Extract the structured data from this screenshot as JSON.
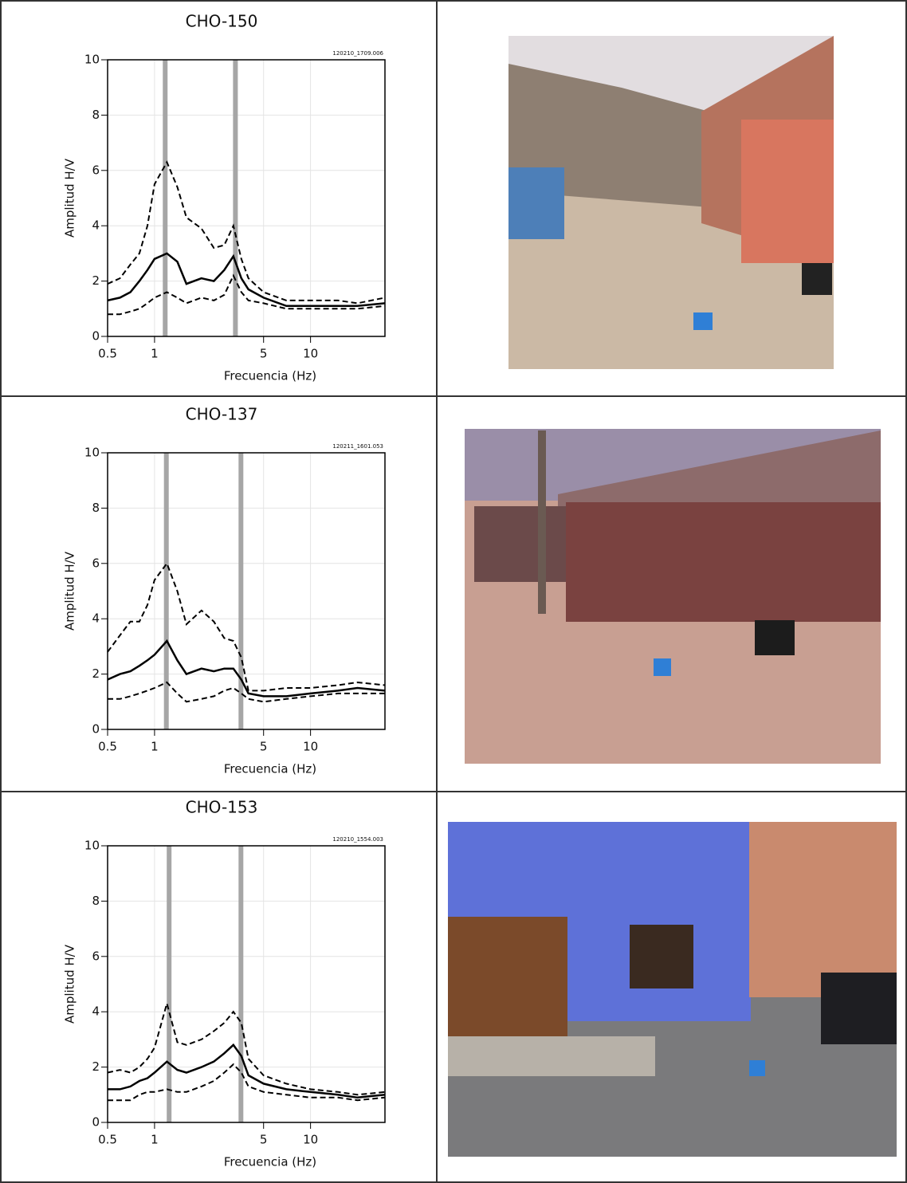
{
  "chart_data": [
    {
      "type": "line",
      "title": "CHO-150",
      "annotation": "120210_1709.006",
      "xlabel": "Frecuencia (Hz)",
      "ylabel": "Amplitud H/V",
      "xscale": "log",
      "xlim": [
        0.5,
        30
      ],
      "xticks": [
        0.5,
        1,
        5,
        10
      ],
      "ylim": [
        0,
        10
      ],
      "yticks": [
        0,
        2,
        4,
        6,
        8,
        10
      ],
      "grid": true,
      "peaks": [
        1.17,
        3.3
      ],
      "peak_color": "#a6a6a6",
      "x": [
        0.5,
        0.6,
        0.7,
        0.8,
        0.9,
        1.0,
        1.2,
        1.4,
        1.6,
        2.0,
        2.4,
        2.8,
        3.2,
        3.6,
        4,
        5,
        7,
        10,
        15,
        20,
        30
      ],
      "series": [
        {
          "color": "#000000",
          "dashed": false,
          "values": [
            1.3,
            1.4,
            1.6,
            2.0,
            2.4,
            2.8,
            3.0,
            2.7,
            1.9,
            2.1,
            2.0,
            2.4,
            2.9,
            2.1,
            1.7,
            1.4,
            1.1,
            1.1,
            1.1,
            1.1,
            1.2
          ]
        },
        {
          "color": "#000000",
          "dashed": true,
          "values": [
            1.9,
            2.1,
            2.6,
            3.0,
            4.0,
            5.5,
            6.3,
            5.4,
            4.3,
            3.9,
            3.2,
            3.3,
            4.0,
            2.8,
            2.1,
            1.6,
            1.3,
            1.3,
            1.3,
            1.2,
            1.4
          ]
        },
        {
          "color": "#000000",
          "dashed": true,
          "values": [
            0.8,
            0.8,
            0.9,
            1.0,
            1.2,
            1.4,
            1.6,
            1.4,
            1.2,
            1.4,
            1.3,
            1.5,
            2.2,
            1.6,
            1.3,
            1.2,
            1.0,
            1.0,
            1.0,
            1.0,
            1.1
          ]
        }
      ]
    },
    {
      "type": "line",
      "title": "CHO-137",
      "annotation": "120211_1601.053",
      "xlabel": "Frecuencia (Hz)",
      "ylabel": "Amplitud H/V",
      "xscale": "log",
      "xlim": [
        0.5,
        30
      ],
      "xticks": [
        0.5,
        1,
        5,
        10
      ],
      "ylim": [
        0,
        10
      ],
      "yticks": [
        0,
        2,
        4,
        6,
        8,
        10
      ],
      "grid": true,
      "peaks": [
        1.19,
        3.58
      ],
      "peak_color": "#a6a6a6",
      "x": [
        0.5,
        0.6,
        0.7,
        0.8,
        0.9,
        1.0,
        1.2,
        1.4,
        1.6,
        2.0,
        2.4,
        2.8,
        3.2,
        3.6,
        4,
        5,
        7,
        10,
        15,
        20,
        30
      ],
      "series": [
        {
          "color": "#000000",
          "dashed": false,
          "values": [
            1.8,
            2.0,
            2.1,
            2.3,
            2.5,
            2.7,
            3.2,
            2.5,
            2.0,
            2.2,
            2.1,
            2.2,
            2.2,
            1.8,
            1.3,
            1.2,
            1.2,
            1.3,
            1.4,
            1.5,
            1.4
          ]
        },
        {
          "color": "#000000",
          "dashed": true,
          "values": [
            2.8,
            3.4,
            3.9,
            3.9,
            4.5,
            5.4,
            6.0,
            5.0,
            3.8,
            4.3,
            3.9,
            3.3,
            3.2,
            2.6,
            1.4,
            1.4,
            1.5,
            1.5,
            1.6,
            1.7,
            1.6
          ]
        },
        {
          "color": "#000000",
          "dashed": true,
          "values": [
            1.1,
            1.1,
            1.2,
            1.3,
            1.4,
            1.5,
            1.7,
            1.3,
            1.0,
            1.1,
            1.2,
            1.4,
            1.5,
            1.3,
            1.1,
            1.0,
            1.1,
            1.2,
            1.3,
            1.3,
            1.3
          ]
        }
      ]
    },
    {
      "type": "line",
      "title": "CHO-153",
      "annotation": "120210_1554.003",
      "xlabel": "Frecuencia (Hz)",
      "ylabel": "Amplitud H/V",
      "xscale": "log",
      "xlim": [
        0.5,
        30
      ],
      "xticks": [
        0.5,
        1,
        5,
        10
      ],
      "ylim": [
        0,
        10
      ],
      "yticks": [
        0,
        2,
        4,
        6,
        8,
        10
      ],
      "grid": true,
      "peaks": [
        1.24,
        3.58
      ],
      "peak_color": "#a6a6a6",
      "x": [
        0.5,
        0.6,
        0.7,
        0.8,
        0.9,
        1.0,
        1.2,
        1.4,
        1.6,
        2.0,
        2.4,
        2.8,
        3.2,
        3.6,
        4,
        5,
        7,
        10,
        15,
        20,
        30
      ],
      "series": [
        {
          "color": "#000000",
          "dashed": false,
          "values": [
            1.2,
            1.2,
            1.3,
            1.5,
            1.6,
            1.8,
            2.2,
            1.9,
            1.8,
            2.0,
            2.2,
            2.5,
            2.8,
            2.4,
            1.7,
            1.4,
            1.2,
            1.1,
            1.0,
            0.9,
            1.0
          ]
        },
        {
          "color": "#000000",
          "dashed": true,
          "values": [
            1.8,
            1.9,
            1.8,
            2.0,
            2.3,
            2.7,
            4.3,
            2.9,
            2.8,
            3.0,
            3.3,
            3.6,
            4.0,
            3.6,
            2.3,
            1.7,
            1.4,
            1.2,
            1.1,
            1.0,
            1.1
          ]
        },
        {
          "color": "#000000",
          "dashed": true,
          "values": [
            0.8,
            0.8,
            0.8,
            1.0,
            1.1,
            1.1,
            1.2,
            1.1,
            1.1,
            1.3,
            1.5,
            1.8,
            2.1,
            1.8,
            1.3,
            1.1,
            1.0,
            0.9,
            0.9,
            0.8,
            0.9
          ]
        }
      ]
    }
  ]
}
